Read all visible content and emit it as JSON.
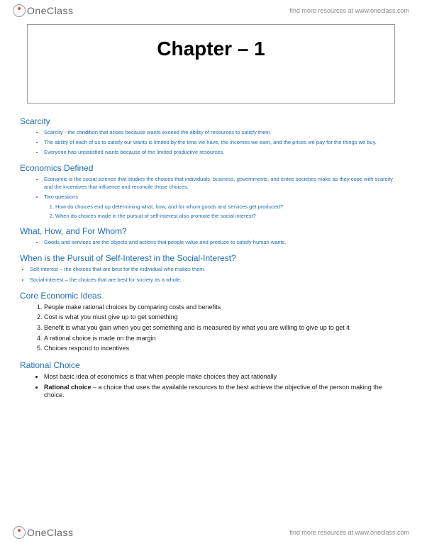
{
  "brand": {
    "name": "OneClass",
    "tagline": "find more resources at www.oneclass.com"
  },
  "chapter": {
    "title": "Chapter – 1"
  },
  "colors": {
    "link_blue": "#1f6db5",
    "body_text": "#1a1a1a",
    "muted": "#888888"
  },
  "sections": {
    "scarcity": {
      "heading": "Scarcity",
      "items": [
        "Scarcity - the condition that arises because wants exceed the ability of resources to satisfy them.",
        "The ability of each of us to satisfy our wants is limited by the time we have, the incomes we earn, and the prices we pay for the things we buy.",
        "Everyone has unsatisfied wants because of the limited productive resources."
      ]
    },
    "econ_defined": {
      "heading": "Economics Defined",
      "items": [
        "Economic is the social science that studies the choices that individuals, business, governments, and entire societies make as they cope with scarcity and the incentives that influence and reconcile those choices.",
        "Two questions"
      ],
      "questions": [
        "How do choices end up determining what, how, and for whom goods and services get produced?",
        "When do choices made in the pursuit of self-interest also promote the social interest?"
      ]
    },
    "what_how": {
      "heading": "What, How, and For Whom?",
      "items": [
        "Goods and services are the objects and actions that people value and produce to satisfy human wants."
      ]
    },
    "self_interest": {
      "heading": "When is the Pursuit of Self-Interest in the Social-Interest?",
      "items": [
        "Self-interest – the choices that are best for the individual who makes them.",
        "Social-interest – the choices that are best for society as a whole."
      ]
    },
    "core_ideas": {
      "heading": "Core Economic Ideas",
      "items": [
        "People make rational choices by comparing costs and benefits",
        "Cost is what you must give up to get something",
        "Benefit is what you gain when you get something and is measured by what you are willing to give up to get it",
        "A rational choice is made on the margin",
        "Choices respond to incentives"
      ]
    },
    "rational": {
      "heading": "Rational Choice",
      "item1": "Most basic idea of economics is that when people make choices they act rationally",
      "item2_bold": "Rational choice",
      "item2_rest": " – a choice that uses the available resources to the best achieve the objective of the person making the choice."
    }
  }
}
